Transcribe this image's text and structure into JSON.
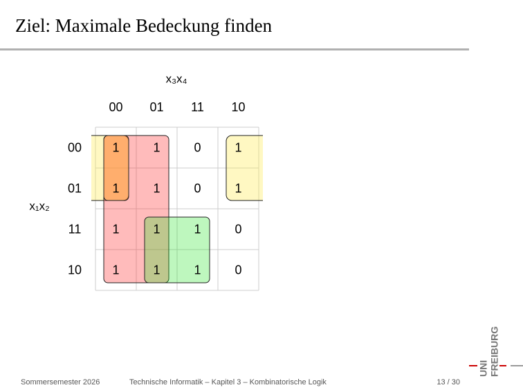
{
  "header": {
    "title": "Ziel: Maximale Bedeckung finden"
  },
  "kmap": {
    "column_variables": "x₃x₄",
    "row_variables": "x₁x₂",
    "columns": [
      "00",
      "01",
      "11",
      "10"
    ],
    "rows": [
      "00",
      "01",
      "11",
      "10"
    ],
    "cells": [
      [
        1,
        1,
        0,
        1
      ],
      [
        1,
        1,
        0,
        1
      ],
      [
        1,
        1,
        1,
        0
      ],
      [
        1,
        1,
        1,
        0
      ]
    ]
  },
  "footer": {
    "left": "Sommersemester 2026",
    "center": "Technische Informatik – Kapitel 3 – Kombinatorische Logik",
    "page": "13 / 30"
  },
  "logo": {
    "top": "UNI",
    "bottom": "FREIBURG"
  }
}
